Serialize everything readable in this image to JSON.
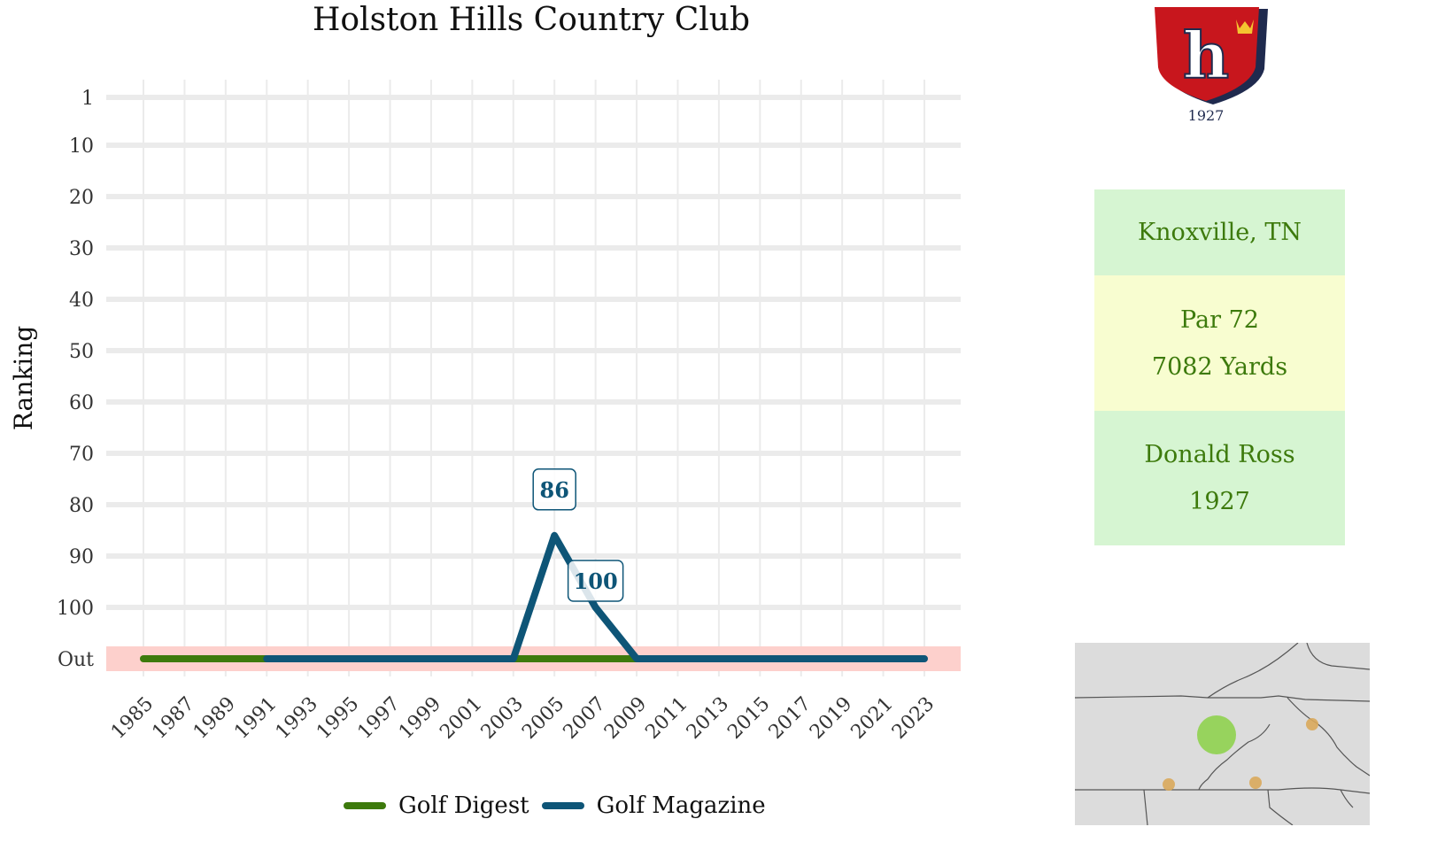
{
  "chart_data": {
    "type": "line",
    "title": "Holston Hills Country Club",
    "ylabel": "Ranking",
    "xlabel": "",
    "x_ticks": [
      1985,
      1987,
      1989,
      1991,
      1993,
      1995,
      1997,
      1999,
      2001,
      2003,
      2005,
      2007,
      2009,
      2011,
      2013,
      2015,
      2017,
      2019,
      2021,
      2023
    ],
    "x_range": [
      1985,
      2023
    ],
    "y_ticks": [
      {
        "value": 1,
        "label": "1"
      },
      {
        "value": 10,
        "label": "10"
      },
      {
        "value": 20,
        "label": "20"
      },
      {
        "value": 30,
        "label": "30"
      },
      {
        "value": 40,
        "label": "40"
      },
      {
        "value": 50,
        "label": "50"
      },
      {
        "value": 60,
        "label": "60"
      },
      {
        "value": 70,
        "label": "70"
      },
      {
        "value": 80,
        "label": "80"
      },
      {
        "value": 90,
        "label": "90"
      },
      {
        "value": 100,
        "label": "100"
      },
      {
        "value": 110,
        "label": "Out"
      }
    ],
    "y_reversed": true,
    "out_value": 110,
    "out_band_color": "#fdd0cc",
    "grid": true,
    "legend_position": "bottom",
    "series": [
      {
        "name": "Golf Digest",
        "color": "#3d7a0c",
        "points": [
          [
            1985,
            110
          ],
          [
            2009,
            110
          ]
        ]
      },
      {
        "name": "Golf Magazine",
        "color": "#0e5577",
        "points": [
          [
            1991,
            110
          ],
          [
            2003,
            110
          ],
          [
            2005,
            86
          ],
          [
            2007,
            100
          ],
          [
            2009,
            110
          ],
          [
            2023,
            110
          ]
        ]
      }
    ],
    "annotations": [
      {
        "x": 2005,
        "y": 86,
        "text": "86"
      },
      {
        "x": 2007,
        "y": 100,
        "text": "100"
      }
    ]
  },
  "logo": {
    "letter": "h",
    "year": "1927",
    "shield_color": "#c8161d",
    "border_color": "#1f2a4e",
    "crown_color": "#f4c430"
  },
  "info": {
    "location": "Knoxville, TN",
    "par": "Par 72",
    "yards": "7082 Yards",
    "architect": "Donald Ross",
    "year": "1927"
  },
  "map": {
    "highlight_color": "#8fd14f",
    "marker_color": "#d9a85b",
    "land_color": "#dcdcdc"
  }
}
